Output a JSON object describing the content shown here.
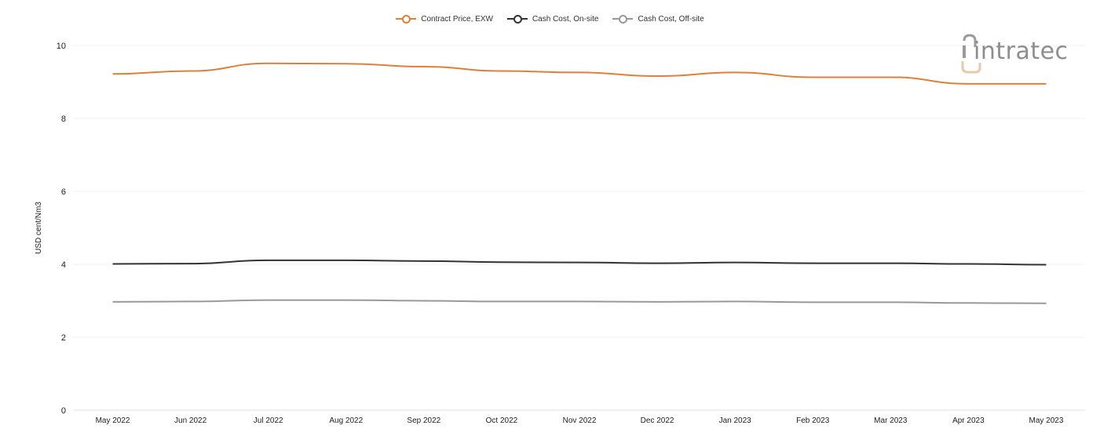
{
  "chart_data": {
    "type": "line",
    "categories": [
      "May 2022",
      "Jun 2022",
      "Jul 2022",
      "Aug 2022",
      "Sep 2022",
      "Oct 2022",
      "Nov 2022",
      "Dec 2022",
      "Jan 2023",
      "Feb 2023",
      "Mar 2023",
      "Apr 2023",
      "May 2023"
    ],
    "series": [
      {
        "name": "Contract Price, EXW",
        "color": "#e07f36",
        "values": [
          9.22,
          9.3,
          9.51,
          9.5,
          9.42,
          9.3,
          9.26,
          9.16,
          9.26,
          9.13,
          9.13,
          8.95,
          8.95
        ]
      },
      {
        "name": "Cash Cost, On-site",
        "color": "#333333",
        "values": [
          4.01,
          4.02,
          4.11,
          4.11,
          4.09,
          4.06,
          4.05,
          4.03,
          4.05,
          4.03,
          4.03,
          4.01,
          3.99
        ]
      },
      {
        "name": "Cash Cost, Off-site",
        "color": "#999999",
        "values": [
          2.97,
          2.98,
          3.02,
          3.02,
          3.0,
          2.98,
          2.98,
          2.97,
          2.98,
          2.96,
          2.96,
          2.94,
          2.93
        ]
      }
    ],
    "title": "",
    "xlabel": "",
    "ylabel": "USD cent/Nm3",
    "ylim": [
      0,
      10
    ],
    "yticks": [
      0,
      2,
      4,
      6,
      8,
      10
    ],
    "grid": true,
    "legend_position": "top-center"
  },
  "logo": {
    "text": "intratec"
  }
}
